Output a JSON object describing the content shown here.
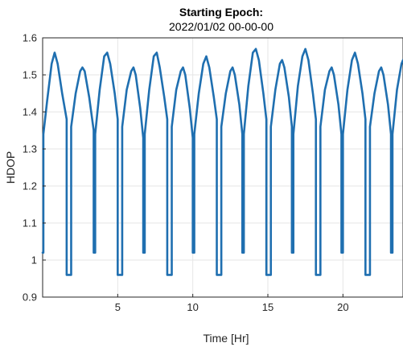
{
  "chart_data": {
    "type": "line",
    "title": "Starting Epoch:",
    "subtitle": "2022/01/02 00-00-00",
    "xlabel": "Time [Hr]",
    "ylabel": "HDOP",
    "xlim": [
      0,
      24
    ],
    "ylim": [
      0.9,
      1.6
    ],
    "x_ticks": [
      5,
      10,
      15,
      20
    ],
    "y_ticks": [
      0.9,
      1,
      1.1,
      1.2,
      1.3,
      1.4,
      1.5,
      1.6
    ],
    "x_tick_labels": [
      "5",
      "10",
      "15",
      "20"
    ],
    "y_tick_labels": [
      "0.9",
      "1",
      "1.1",
      "1.2",
      "1.3",
      "1.4",
      "1.5",
      "1.6"
    ],
    "grid": true,
    "line_color": "#1f6fb0",
    "series": [
      {
        "points": [
          [
            0.0,
            1.02
          ],
          [
            0.05,
            1.02
          ],
          [
            0.05,
            1.34
          ],
          [
            0.3,
            1.43
          ],
          [
            0.6,
            1.53
          ],
          [
            0.8,
            1.56
          ],
          [
            1.0,
            1.53
          ],
          [
            1.3,
            1.45
          ],
          [
            1.6,
            1.38
          ],
          [
            1.6,
            0.96
          ],
          [
            1.9,
            0.96
          ],
          [
            1.9,
            1.36
          ],
          [
            2.2,
            1.45
          ],
          [
            2.5,
            1.51
          ],
          [
            2.65,
            1.52
          ],
          [
            2.8,
            1.51
          ],
          [
            3.1,
            1.44
          ],
          [
            3.4,
            1.35
          ],
          [
            3.4,
            1.02
          ],
          [
            3.5,
            1.02
          ],
          [
            3.5,
            1.34
          ],
          [
            3.8,
            1.46
          ],
          [
            4.1,
            1.55
          ],
          [
            4.3,
            1.56
          ],
          [
            4.5,
            1.53
          ],
          [
            4.8,
            1.45
          ],
          [
            5.0,
            1.38
          ],
          [
            5.0,
            0.96
          ],
          [
            5.3,
            0.96
          ],
          [
            5.3,
            1.36
          ],
          [
            5.6,
            1.46
          ],
          [
            5.9,
            1.51
          ],
          [
            6.05,
            1.52
          ],
          [
            6.2,
            1.5
          ],
          [
            6.5,
            1.41
          ],
          [
            6.7,
            1.33
          ],
          [
            6.7,
            1.02
          ],
          [
            6.8,
            1.02
          ],
          [
            6.8,
            1.34
          ],
          [
            7.1,
            1.46
          ],
          [
            7.4,
            1.55
          ],
          [
            7.6,
            1.56
          ],
          [
            7.8,
            1.52
          ],
          [
            8.1,
            1.44
          ],
          [
            8.3,
            1.38
          ],
          [
            8.3,
            0.96
          ],
          [
            8.6,
            0.96
          ],
          [
            8.6,
            1.36
          ],
          [
            8.9,
            1.46
          ],
          [
            9.2,
            1.51
          ],
          [
            9.35,
            1.52
          ],
          [
            9.5,
            1.5
          ],
          [
            9.8,
            1.41
          ],
          [
            10.0,
            1.33
          ],
          [
            10.0,
            1.02
          ],
          [
            10.1,
            1.02
          ],
          [
            10.1,
            1.34
          ],
          [
            10.4,
            1.45
          ],
          [
            10.7,
            1.53
          ],
          [
            10.9,
            1.55
          ],
          [
            11.1,
            1.52
          ],
          [
            11.4,
            1.44
          ],
          [
            11.6,
            1.38
          ],
          [
            11.6,
            0.96
          ],
          [
            11.9,
            0.96
          ],
          [
            11.9,
            1.36
          ],
          [
            12.2,
            1.45
          ],
          [
            12.5,
            1.51
          ],
          [
            12.65,
            1.52
          ],
          [
            12.8,
            1.5
          ],
          [
            13.1,
            1.42
          ],
          [
            13.3,
            1.34
          ],
          [
            13.3,
            1.02
          ],
          [
            13.4,
            1.02
          ],
          [
            13.4,
            1.34
          ],
          [
            13.7,
            1.47
          ],
          [
            14.0,
            1.56
          ],
          [
            14.2,
            1.57
          ],
          [
            14.4,
            1.54
          ],
          [
            14.7,
            1.45
          ],
          [
            14.9,
            1.38
          ],
          [
            14.9,
            0.96
          ],
          [
            15.2,
            0.96
          ],
          [
            15.2,
            1.36
          ],
          [
            15.5,
            1.46
          ],
          [
            15.8,
            1.53
          ],
          [
            15.95,
            1.54
          ],
          [
            16.1,
            1.52
          ],
          [
            16.4,
            1.44
          ],
          [
            16.6,
            1.36
          ],
          [
            16.6,
            1.02
          ],
          [
            16.7,
            1.02
          ],
          [
            16.7,
            1.34
          ],
          [
            17.0,
            1.47
          ],
          [
            17.3,
            1.55
          ],
          [
            17.5,
            1.57
          ],
          [
            17.7,
            1.54
          ],
          [
            18.0,
            1.45
          ],
          [
            18.2,
            1.38
          ],
          [
            18.2,
            0.96
          ],
          [
            18.5,
            0.96
          ],
          [
            18.5,
            1.36
          ],
          [
            18.8,
            1.46
          ],
          [
            19.1,
            1.51
          ],
          [
            19.25,
            1.52
          ],
          [
            19.4,
            1.5
          ],
          [
            19.7,
            1.42
          ],
          [
            19.9,
            1.34
          ],
          [
            19.9,
            1.02
          ],
          [
            20.0,
            1.02
          ],
          [
            20.0,
            1.34
          ],
          [
            20.3,
            1.46
          ],
          [
            20.6,
            1.54
          ],
          [
            20.8,
            1.56
          ],
          [
            21.0,
            1.53
          ],
          [
            21.3,
            1.45
          ],
          [
            21.5,
            1.38
          ],
          [
            21.5,
            0.96
          ],
          [
            21.8,
            0.96
          ],
          [
            21.8,
            1.36
          ],
          [
            22.1,
            1.45
          ],
          [
            22.4,
            1.51
          ],
          [
            22.55,
            1.52
          ],
          [
            22.7,
            1.5
          ],
          [
            23.0,
            1.42
          ],
          [
            23.2,
            1.34
          ],
          [
            23.2,
            1.02
          ],
          [
            23.3,
            1.02
          ],
          [
            23.3,
            1.34
          ],
          [
            23.6,
            1.46
          ],
          [
            23.9,
            1.53
          ],
          [
            24.0,
            1.54
          ]
        ]
      }
    ]
  }
}
